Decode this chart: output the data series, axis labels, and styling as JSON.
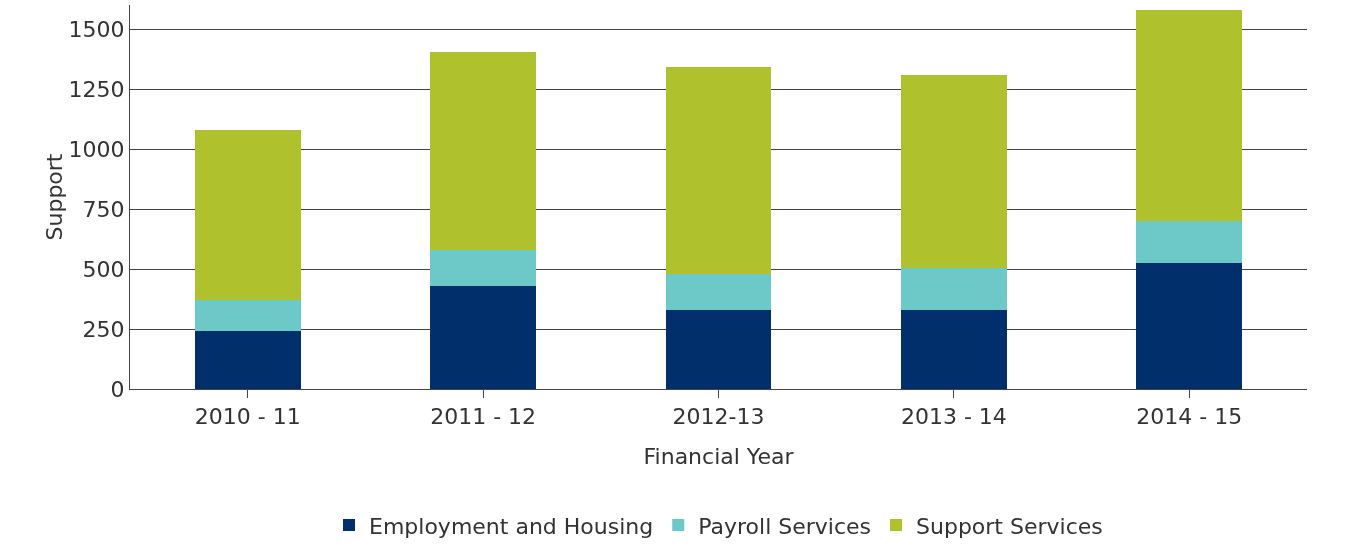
{
  "chart_data": {
    "type": "bar",
    "stacked": true,
    "xlabel": "Financial Year",
    "ylabel": "Support",
    "categories": [
      "2010 - 11",
      "2011 - 12",
      "2012-13",
      "2013 - 14",
      "2014 - 15"
    ],
    "series": [
      {
        "name": "Employment and Housing",
        "color": "#002f6c",
        "values": [
          240,
          430,
          330,
          330,
          525
        ]
      },
      {
        "name": "Payroll Services",
        "color": "#6cc9c8",
        "values": [
          130,
          150,
          150,
          175,
          175
        ]
      },
      {
        "name": "Support Services",
        "color": "#b0c12e",
        "values": [
          710,
          825,
          860,
          805,
          880
        ]
      }
    ],
    "ylim": [
      0,
      1600
    ],
    "yticks": [
      0,
      250,
      500,
      750,
      1000,
      1250,
      1500
    ],
    "grid": "y",
    "legend": "bottom"
  }
}
